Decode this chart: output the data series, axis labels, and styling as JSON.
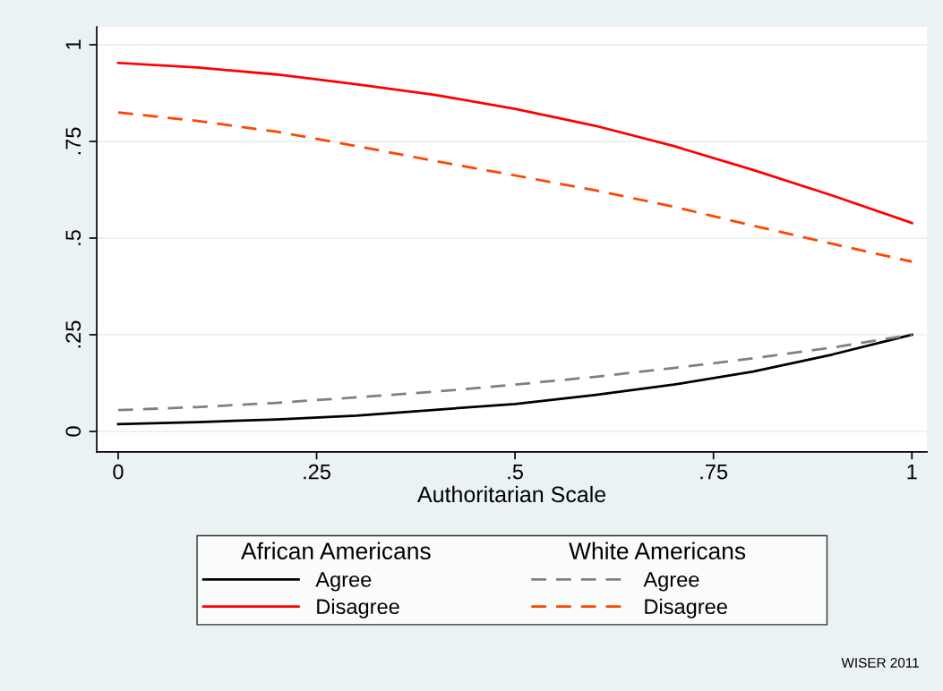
{
  "chart_data": {
    "type": "line",
    "xlabel": "Authoritarian Scale",
    "x": [
      0,
      0.1,
      0.2,
      0.3,
      0.4,
      0.5,
      0.6,
      0.7,
      0.8,
      0.9,
      1
    ],
    "xlim": [
      -0.027,
      1.019
    ],
    "xticks": [
      0,
      {
        "value": 0.25,
        "label": ".25"
      },
      {
        "value": 0.5,
        "label": ".5"
      },
      {
        "value": 0.75,
        "label": ".75"
      },
      1
    ],
    "ylim": [
      -0.053,
      1.046
    ],
    "yticks": [
      0,
      {
        "value": 0.25,
        "label": ".25"
      },
      {
        "value": 0.5,
        "label": ".5"
      },
      {
        "value": 0.75,
        "label": ".75"
      },
      1
    ],
    "grid": "y",
    "legend": "bottom",
    "legend_title": [
      "African Americans",
      "White Americans"
    ],
    "series": [
      {
        "name": "Agree",
        "color": "#000000",
        "line_style": "solid",
        "values": [
          0.019,
          0.024,
          0.031,
          0.041,
          0.056,
          0.071,
          0.094,
          0.121,
          0.155,
          0.199,
          0.25
        ]
      },
      {
        "name": "Disagree",
        "color": "#ff0000",
        "line_style": "solid",
        "values": [
          0.953,
          0.941,
          0.923,
          0.898,
          0.87,
          0.834,
          0.791,
          0.738,
          0.676,
          0.61,
          0.539
        ]
      },
      {
        "name": "Agree",
        "color": "#808080",
        "line_style": "dashed",
        "values": [
          0.055,
          0.063,
          0.074,
          0.088,
          0.103,
          0.121,
          0.141,
          0.164,
          0.189,
          0.217,
          0.25
        ]
      },
      {
        "name": "Disagree",
        "color": "#ff4500",
        "line_style": "dashed",
        "values": [
          0.825,
          0.803,
          0.775,
          0.738,
          0.699,
          0.662,
          0.624,
          0.581,
          0.532,
          0.485,
          0.439
        ]
      }
    ],
    "annotations": [
      "WISER 2011"
    ]
  }
}
